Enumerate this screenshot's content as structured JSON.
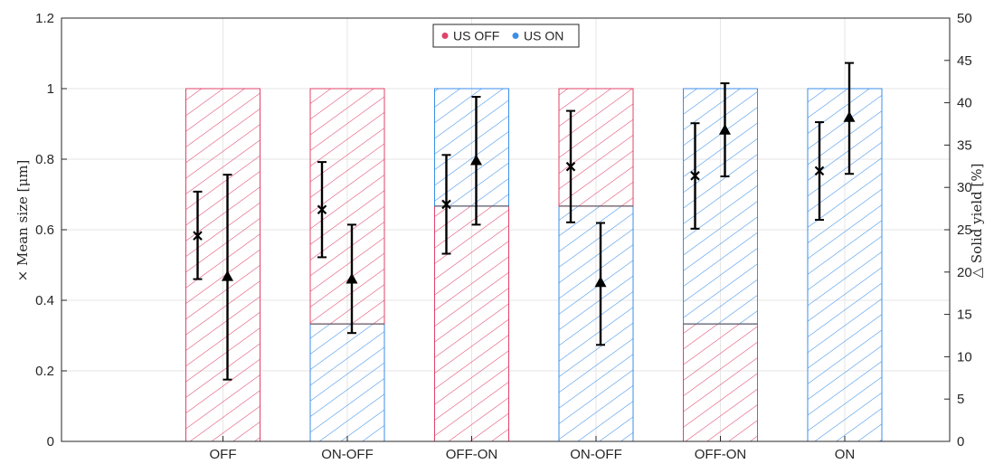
{
  "colors": {
    "us_off": "#e0436a",
    "us_on": "#3b8ee8",
    "error_bar": "#000000",
    "grid": "#e6e6e6",
    "axis": "#262626"
  },
  "chart_data": {
    "type": "bar",
    "categories": [
      "OFF",
      "ON-OFF",
      "OFF-ON",
      "ON-OFF",
      "OFF-ON",
      "ON"
    ],
    "bars": [
      {
        "category": "OFF",
        "segments": [
          {
            "state": "US OFF",
            "from": 0,
            "to": 1
          }
        ]
      },
      {
        "category": "ON-OFF",
        "segments": [
          {
            "state": "US ON",
            "from": 0,
            "to": 0.333
          },
          {
            "state": "US OFF",
            "from": 0.333,
            "to": 1
          }
        ]
      },
      {
        "category": "OFF-ON",
        "segments": [
          {
            "state": "US OFF",
            "from": 0,
            "to": 0.667
          },
          {
            "state": "US ON",
            "from": 0.667,
            "to": 1
          }
        ]
      },
      {
        "category": "ON-OFF",
        "segments": [
          {
            "state": "US ON",
            "from": 0,
            "to": 0.667
          },
          {
            "state": "US OFF",
            "from": 0.667,
            "to": 1
          }
        ]
      },
      {
        "category": "OFF-ON",
        "segments": [
          {
            "state": "US OFF",
            "from": 0,
            "to": 0.333
          },
          {
            "state": "US ON",
            "from": 0.333,
            "to": 1
          }
        ]
      },
      {
        "category": "ON",
        "segments": [
          {
            "state": "US ON",
            "from": 0,
            "to": 1
          }
        ]
      }
    ],
    "series": [
      {
        "marker": "x",
        "axis": "left",
        "values": [
          0.583,
          0.657,
          0.672,
          0.779,
          0.753,
          0.767
        ],
        "lower": [
          0.46,
          0.522,
          0.532,
          0.621,
          0.603,
          0.628
        ],
        "upper": [
          0.708,
          0.792,
          0.812,
          0.937,
          0.902,
          0.905
        ]
      },
      {
        "marker": "triangle",
        "axis": "right",
        "values": [
          19.5,
          19.2,
          33.2,
          18.8,
          36.8,
          38.3
        ],
        "lower": [
          7.3,
          12.8,
          25.6,
          11.4,
          31.3,
          31.6
        ],
        "upper": [
          31.5,
          25.6,
          40.7,
          25.8,
          42.3,
          44.7
        ]
      }
    ],
    "legend": {
      "entries": [
        "US OFF",
        "US ON"
      ],
      "placement": "top-center"
    },
    "ylabel_left": "× Mean size [μm]",
    "ylabel_right": "△ Solid yield [%]",
    "ylim_left": [
      0,
      1.2
    ],
    "ylim_right": [
      0,
      50
    ],
    "yticks_left": [
      "0",
      "0.2",
      "0.4",
      "0.6",
      "0.8",
      "1",
      "1.2"
    ],
    "yticks_right": [
      "0",
      "5",
      "10",
      "15",
      "20",
      "25",
      "30",
      "35",
      "40",
      "45",
      "50"
    ],
    "grid": true
  }
}
